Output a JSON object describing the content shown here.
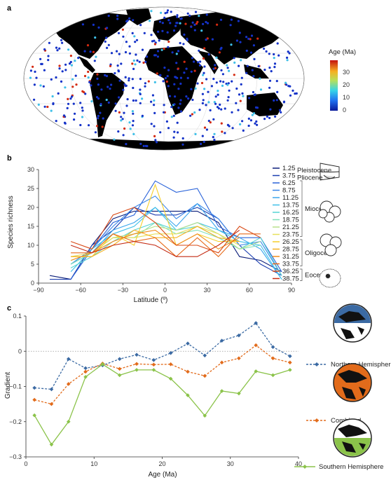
{
  "panel_letters": {
    "a": "a",
    "b": "b",
    "c": "c"
  },
  "map": {
    "colorbar_title": "Age (Ma)",
    "colorbar_ticks": [
      "30",
      "20",
      "10",
      "0"
    ],
    "colors": {
      "land": "#000000",
      "ocean": "#ffffff",
      "site_young": "#1432c8",
      "site_old": "#d42a10"
    }
  },
  "colors": {
    "northern": "#3b6aa3",
    "combined": "#e26b1b",
    "southern": "#8bc34a",
    "zero_line": "#999999"
  },
  "chart_data": [
    {
      "type": "line",
      "title": "",
      "xlabel": "Latitude (º)",
      "ylabel": "Species richness",
      "xlim": [
        -90,
        90
      ],
      "ylim": [
        0,
        30
      ],
      "xticks": [
        "−90",
        "−60",
        "−30",
        "0",
        "30",
        "60",
        "90"
      ],
      "yticks": [
        "0",
        "5",
        "10",
        "15",
        "20",
        "25",
        "30"
      ],
      "x": [
        -82,
        -67,
        -52,
        -37,
        -22,
        -7,
        8,
        23,
        38,
        53,
        68,
        83
      ],
      "series": [
        {
          "name": "1.25",
          "color": "#0d1f7a",
          "values": [
            2,
            1,
            10,
            17,
            19,
            19,
            19,
            19,
            16,
            7,
            6,
            3
          ]
        },
        {
          "name": "3.75",
          "color": "#1c3fb0",
          "values": [
            1,
            1,
            10,
            14,
            20,
            18,
            18,
            20,
            17,
            10,
            5,
            2
          ]
        },
        {
          "name": "6.25",
          "color": "#2a63d9",
          "values": [
            null,
            1,
            9,
            16,
            18,
            27,
            24,
            25,
            15,
            12,
            12,
            3
          ]
        },
        {
          "name": "8.75",
          "color": "#3a86e8",
          "values": [
            null,
            5,
            9,
            15,
            20,
            23,
            17,
            21,
            17,
            10,
            11,
            2
          ]
        },
        {
          "name": "11.25",
          "color": "#3aa6ee",
          "values": [
            null,
            5,
            8,
            14,
            16,
            20,
            15,
            21,
            14,
            12,
            9,
            1
          ]
        },
        {
          "name": "13.75",
          "color": "#3fc0e8",
          "values": [
            null,
            3,
            9,
            13,
            15,
            20,
            14,
            16,
            14,
            11,
            10,
            1
          ]
        },
        {
          "name": "16.25",
          "color": "#55d4d4",
          "values": [
            null,
            4,
            7,
            11,
            14,
            16,
            14,
            15,
            12,
            9,
            12,
            2
          ]
        },
        {
          "name": "18.75",
          "color": "#7fe0b8",
          "values": [
            null,
            5,
            8,
            12,
            12,
            16,
            13,
            14,
            12,
            9,
            10,
            null
          ]
        },
        {
          "name": "21.25",
          "color": "#b8e08a",
          "values": [
            null,
            6,
            8,
            12,
            13,
            15,
            14,
            16,
            13,
            9,
            11,
            null
          ]
        },
        {
          "name": "23.75",
          "color": "#e6e05a",
          "values": [
            null,
            7,
            8,
            12,
            12,
            13,
            13,
            15,
            13,
            10,
            null,
            null
          ]
        },
        {
          "name": "26.25",
          "color": "#f5cf2a",
          "values": [
            null,
            7,
            7,
            13,
            10,
            26,
            10,
            13,
            11,
            11,
            null,
            null
          ]
        },
        {
          "name": "28.75",
          "color": "#f5b021",
          "values": [
            null,
            7,
            7,
            10,
            14,
            12,
            12,
            15,
            12,
            11,
            null,
            null
          ]
        },
        {
          "name": "31.25",
          "color": "#f08c1c",
          "values": [
            null,
            6,
            8,
            11,
            13,
            14,
            10,
            13,
            9,
            12,
            null,
            null
          ]
        },
        {
          "name": "33.75",
          "color": "#e66a1a",
          "values": [
            null,
            8,
            8,
            13,
            11,
            12,
            7,
            12,
            7,
            13,
            13,
            null
          ]
        },
        {
          "name": "36.25",
          "color": "#d94a16",
          "values": [
            null,
            11,
            9,
            18,
            20,
            16,
            10,
            10,
            8,
            15,
            12,
            null
          ]
        },
        {
          "name": "38.75",
          "color": "#c42a12",
          "values": [
            null,
            10,
            8,
            10,
            11,
            10,
            7,
            7,
            10,
            14,
            null,
            null
          ]
        }
      ],
      "epochs": [
        {
          "label": "Pleistocene",
          "members": [
            "1.25"
          ]
        },
        {
          "label": "Pliocene",
          "members": [
            "3.75"
          ]
        },
        {
          "label": "Miocene",
          "members": [
            "6.25",
            "8.75",
            "11.25",
            "13.75",
            "16.25",
            "18.75",
            "21.25",
            "23.75"
          ]
        },
        {
          "label": "Oligocene",
          "members": [
            "26.25",
            "28.75",
            "31.25",
            "33.75"
          ]
        },
        {
          "label": "Eocene",
          "members": [
            "36.25",
            "38.75"
          ]
        }
      ]
    },
    {
      "type": "line",
      "title": "",
      "xlabel": "Age (Ma)",
      "ylabel": "Gradient",
      "xlim": [
        0,
        40
      ],
      "ylim": [
        -0.3,
        0.1
      ],
      "xticks": [
        "0",
        "10",
        "20",
        "30",
        "40"
      ],
      "yticks": [
        "0.1",
        "0",
        "−0.1",
        "−0.2",
        "−0.3"
      ],
      "x": [
        1.25,
        3.75,
        6.25,
        8.75,
        11.25,
        13.75,
        16.25,
        18.75,
        21.25,
        23.75,
        26.25,
        28.75,
        31.25,
        33.75,
        36.25,
        38.75
      ],
      "series": [
        {
          "name": "Northern Hemisphere",
          "style": "dashed",
          "values": [
            -0.104,
            -0.108,
            -0.022,
            -0.048,
            -0.04,
            -0.022,
            -0.01,
            -0.025,
            -0.005,
            0.022,
            -0.012,
            0.03,
            0.045,
            0.08,
            0.012,
            -0.014
          ]
        },
        {
          "name": "Combined",
          "style": "dashed",
          "values": [
            -0.138,
            -0.15,
            -0.093,
            -0.058,
            -0.035,
            -0.05,
            -0.036,
            -0.038,
            -0.037,
            -0.058,
            -0.07,
            -0.032,
            -0.02,
            0.017,
            -0.02,
            -0.032
          ]
        },
        {
          "name": "Southern Hemisphere",
          "style": "solid",
          "values": [
            -0.182,
            -0.265,
            -0.2,
            -0.073,
            -0.037,
            -0.068,
            -0.053,
            -0.053,
            -0.078,
            -0.125,
            -0.183,
            -0.113,
            -0.12,
            -0.057,
            -0.068,
            -0.053
          ]
        }
      ]
    }
  ]
}
